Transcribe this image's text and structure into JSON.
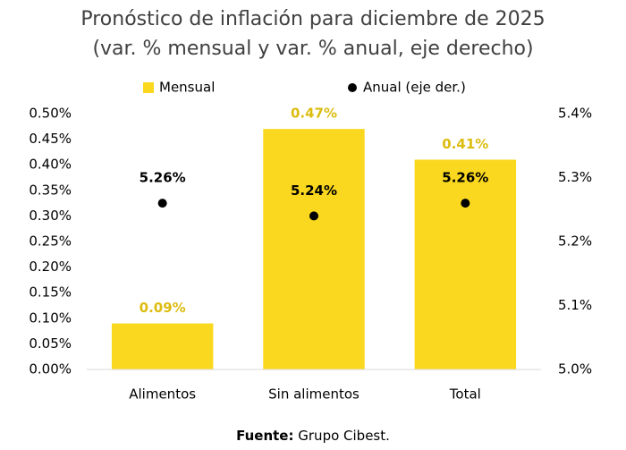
{
  "chart_data": {
    "type": "bar_dot",
    "title": "Pronóstico de inflación para diciembre de 2025",
    "subtitle": "(var. % mensual y var. % anual, eje derecho)",
    "categories": [
      "Alimentos",
      "Sin alimentos",
      "Total"
    ],
    "series": [
      {
        "name": "Mensual",
        "color": "#fad81f",
        "label_color": "#dcbc10",
        "type": "bar",
        "values": [
          0.09,
          0.47,
          0.41
        ],
        "value_labels": [
          "0.09%",
          "0.47%",
          "0.41%"
        ]
      },
      {
        "name": "Anual (eje der.)",
        "color": "#000000",
        "label_color": "#000000",
        "type": "dot",
        "axis": "y2",
        "values": [
          5.26,
          5.24,
          5.26
        ],
        "value_labels": [
          "5.26%",
          "5.24%",
          "5.26%"
        ]
      }
    ],
    "ylim": [
      0,
      0.5
    ],
    "yticks": [
      {
        "value": 0,
        "label": "0.00%"
      },
      {
        "value": 0.05,
        "label": "0.05%"
      },
      {
        "value": 0.1,
        "label": "0.10%"
      },
      {
        "value": 0.15,
        "label": "0.15%"
      },
      {
        "value": 0.2,
        "label": "0.20%"
      },
      {
        "value": 0.25,
        "label": "0.25%"
      },
      {
        "value": 0.3,
        "label": "0.30%"
      },
      {
        "value": 0.35,
        "label": "0.35%"
      },
      {
        "value": 0.4,
        "label": "0.40%"
      },
      {
        "value": 0.45,
        "label": "0.45%"
      },
      {
        "value": 0.5,
        "label": "0.50%"
      }
    ],
    "y2lim": [
      5.0,
      5.4
    ],
    "y2ticks": [
      {
        "value": 5.0,
        "label": "5.0%"
      },
      {
        "value": 5.1,
        "label": "5.1%"
      },
      {
        "value": 5.2,
        "label": "5.2%"
      },
      {
        "value": 5.3,
        "label": "5.3%"
      },
      {
        "value": 5.4,
        "label": "5.4%"
      }
    ],
    "grid": false,
    "legend": "top",
    "source_label": "Fuente:",
    "source": "Grupo Cibest."
  }
}
